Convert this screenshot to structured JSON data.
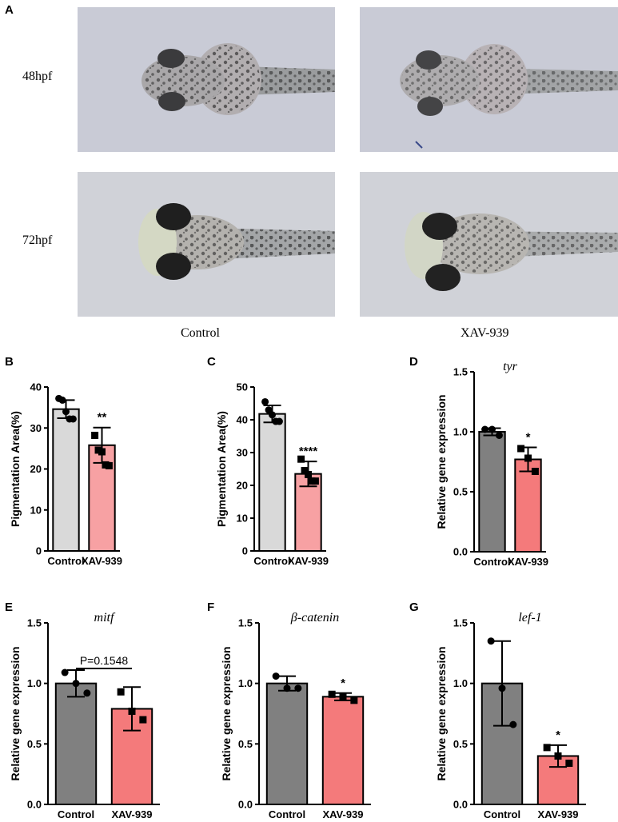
{
  "figure": {
    "panel_letters": [
      "A",
      "B",
      "C",
      "D",
      "E",
      "F",
      "G"
    ],
    "row_labels": [
      "48hpf",
      "72hpf"
    ],
    "column_labels": [
      "Control",
      "XAV-939"
    ]
  },
  "colors": {
    "control_light": "#d9d9d9",
    "treated_light": "#f7a1a3",
    "control_dark": "#808080",
    "treated_dark": "#f47a7b",
    "photo_bg_48": "#c9cbd6",
    "photo_bg_72": "#d0d2d8"
  },
  "chart_data": [
    {
      "panel": "B",
      "type": "bar",
      "categories": [
        "Control",
        "XAV-939"
      ],
      "values": [
        34.6,
        25.8
      ],
      "errors": [
        2.2,
        4.3
      ],
      "points": [
        [
          37.2,
          36.8,
          34.0,
          32.2,
          32.2
        ],
        [
          28.2,
          24.6,
          24.2,
          21.0,
          20.8
        ]
      ],
      "markers": [
        "circle",
        "square"
      ],
      "title": "",
      "italic_title": false,
      "ylabel": "Pigmentation Area(%)",
      "ylim": [
        0,
        40
      ],
      "yticks": [
        0,
        10,
        20,
        30,
        40
      ],
      "tick_labels": [
        "0",
        "10",
        "20",
        "30",
        "40"
      ],
      "significance": "**",
      "pvalue_label": "",
      "colors": [
        "#d9d9d9",
        "#f7a1a3"
      ]
    },
    {
      "panel": "C",
      "type": "bar",
      "categories": [
        "Control",
        "XAV-939"
      ],
      "values": [
        41.8,
        23.5
      ],
      "errors": [
        2.6,
        3.8
      ],
      "points": [
        [
          45.5,
          43.0,
          41.5,
          39.5,
          39.5
        ],
        [
          28.0,
          24.5,
          23.3,
          21.3,
          21.3
        ]
      ],
      "markers": [
        "circle",
        "square"
      ],
      "title": "",
      "italic_title": false,
      "ylabel": "Pigmentation Area(%)",
      "ylim": [
        0,
        50
      ],
      "yticks": [
        0,
        10,
        20,
        30,
        40,
        50
      ],
      "tick_labels": [
        "0",
        "10",
        "20",
        "30",
        "40",
        "50"
      ],
      "significance": "****",
      "pvalue_label": "",
      "colors": [
        "#d9d9d9",
        "#f7a1a3"
      ]
    },
    {
      "panel": "D",
      "type": "bar",
      "categories": [
        "Control",
        "XAV-939"
      ],
      "values": [
        1.0,
        0.77
      ],
      "errors": [
        0.03,
        0.1
      ],
      "points": [
        [
          1.02,
          1.02,
          0.97
        ],
        [
          0.86,
          0.78,
          0.67
        ]
      ],
      "markers": [
        "circle",
        "square"
      ],
      "title": "tyr",
      "italic_title": true,
      "ylabel": "Relative gene expression",
      "ylim": [
        0,
        1.5
      ],
      "yticks": [
        0,
        0.5,
        1.0,
        1.5
      ],
      "tick_labels": [
        "0.0",
        "0.5",
        "1.0",
        "1.5"
      ],
      "significance": "*",
      "pvalue_label": "",
      "colors": [
        "#808080",
        "#f47a7b"
      ]
    },
    {
      "panel": "E",
      "type": "bar",
      "categories": [
        "Control",
        "XAV-939"
      ],
      "values": [
        1.0,
        0.79
      ],
      "errors": [
        0.11,
        0.18
      ],
      "points": [
        [
          1.09,
          1.0,
          0.92
        ],
        [
          0.93,
          0.77,
          0.7
        ]
      ],
      "markers": [
        "circle",
        "square"
      ],
      "title": "mitf",
      "italic_title": true,
      "ylabel": "Relative gene expression",
      "ylim": [
        0,
        1.5
      ],
      "yticks": [
        0,
        0.5,
        1.0,
        1.5
      ],
      "tick_labels": [
        "0.0",
        "0.5",
        "1.0",
        "1.5"
      ],
      "significance": "",
      "pvalue_label": "P=0.1548",
      "colors": [
        "#808080",
        "#f47a7b"
      ]
    },
    {
      "panel": "F",
      "type": "bar",
      "categories": [
        "Control",
        "XAV-939"
      ],
      "values": [
        1.0,
        0.89
      ],
      "errors": [
        0.06,
        0.03
      ],
      "points": [
        [
          1.06,
          0.96,
          0.96
        ],
        [
          0.91,
          0.89,
          0.86
        ]
      ],
      "markers": [
        "circle",
        "square"
      ],
      "title": "β-catenin",
      "italic_title": true,
      "ylabel": "Relative gene expression",
      "ylim": [
        0,
        1.5
      ],
      "yticks": [
        0,
        0.5,
        1.0,
        1.5
      ],
      "tick_labels": [
        "0.0",
        "0.5",
        "1.0",
        "1.5"
      ],
      "significance": "*",
      "pvalue_label": "",
      "colors": [
        "#808080",
        "#f47a7b"
      ]
    },
    {
      "panel": "G",
      "type": "bar",
      "categories": [
        "Control",
        "XAV-939"
      ],
      "values": [
        1.0,
        0.4
      ],
      "errors": [
        0.35,
        0.09
      ],
      "points": [
        [
          1.35,
          0.96,
          0.66
        ],
        [
          0.47,
          0.4,
          0.34
        ]
      ],
      "markers": [
        "circle",
        "square"
      ],
      "title": "lef-1",
      "italic_title": true,
      "ylabel": "Relative gene expression",
      "ylim": [
        0,
        1.5
      ],
      "yticks": [
        0,
        0.5,
        1.0,
        1.5
      ],
      "tick_labels": [
        "0.0",
        "0.5",
        "1.0",
        "1.5"
      ],
      "significance": "*",
      "pvalue_label": "",
      "colors": [
        "#808080",
        "#f47a7b"
      ]
    }
  ]
}
